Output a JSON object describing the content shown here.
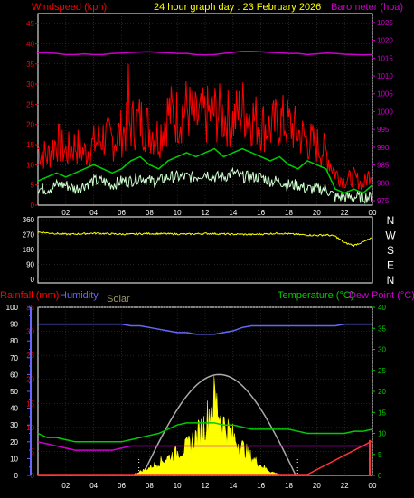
{
  "header": {
    "title": "24 hour graph day : 23 February 2026",
    "left_label": "Windspeed (kph)",
    "right_label": "Barometer (hpa)"
  },
  "colors": {
    "background": "#000000",
    "frame": "#ffffff",
    "grid": "#444444",
    "title": "#ffff00",
    "wind_avg": "#00cc00",
    "wind_gust": "#ff0000",
    "wind_band": "#d0ffd0",
    "barometer": "#cc00cc",
    "direction": "#ffff00",
    "rain_axis": "#ff0000",
    "humidity": "#6666ff",
    "solar": "#ffff00",
    "solar_label": "#999966",
    "solar_max": "#aaaaaa",
    "temperature": "#00cc00",
    "dewpoint": "#cc00cc",
    "rainfall": "#ff3333"
  },
  "chart_data": [
    {
      "type": "line",
      "id": "wind-baro",
      "xlabel": "",
      "x_ticks": [
        "02",
        "04",
        "06",
        "08",
        "10",
        "12",
        "14",
        "16",
        "18",
        "20",
        "22",
        "00"
      ],
      "y_left_ticks": [
        "0",
        "5",
        "10",
        "15",
        "20",
        "25",
        "30",
        "35",
        "40",
        "45"
      ],
      "y_right_ticks": [
        "975",
        "980",
        "985",
        "990",
        "995",
        "1000",
        "1005",
        "1010",
        "1015",
        "1020",
        "1025"
      ],
      "ylim_left": [
        0,
        47.5
      ],
      "ylim_right": [
        973.75,
        1027.5
      ],
      "series": [
        {
          "name": "Windspeed (kph)",
          "axis": "left",
          "values": [
            6,
            7,
            8,
            7,
            8,
            9,
            10,
            9,
            8,
            9,
            11,
            12,
            10,
            9,
            11,
            12,
            13,
            12,
            13,
            14,
            12,
            13,
            14,
            13,
            12,
            11,
            12,
            10,
            9,
            11,
            10,
            9,
            4,
            3,
            4,
            3,
            5
          ]
        },
        {
          "name": "Barometer (hpa)",
          "axis": "right",
          "values": [
            1016.5,
            1016.5,
            1016.3,
            1016.0,
            1016.0,
            1016.2,
            1016.0,
            1016.0,
            1016.3,
            1016.4,
            1016.6,
            1016.7,
            1016.8,
            1016.6,
            1016.5,
            1016.3,
            1016.3,
            1016.0,
            1015.9,
            1016.0,
            1016.3,
            1016.6,
            1016.9,
            1016.9,
            1016.8,
            1016.6,
            1016.5,
            1016.3,
            1016.3,
            1016.0,
            1016.2,
            1016.4,
            1016.3,
            1016.1,
            1016.0,
            1015.9,
            1016.0
          ]
        }
      ],
      "gust_values": [
        14,
        12,
        16,
        13,
        15,
        13,
        15,
        17,
        16,
        18,
        20,
        21,
        19,
        17,
        23,
        22,
        24,
        21,
        22,
        23,
        22,
        21,
        24,
        22,
        20,
        19,
        21,
        20,
        18,
        16,
        15,
        13,
        8,
        6,
        7,
        5,
        9
      ],
      "gust_peak": 35,
      "min_band_values": [
        4,
        4,
        5,
        5,
        4,
        5,
        6,
        6,
        5,
        6,
        6,
        7,
        6,
        6,
        7,
        7,
        7,
        7,
        8,
        7,
        7,
        8,
        7,
        7,
        7,
        6,
        6,
        5,
        5,
        4,
        4,
        4,
        2,
        2,
        2,
        2,
        2
      ]
    },
    {
      "type": "scatter",
      "id": "direction",
      "y_ticks": [
        "360",
        "270",
        "180",
        "90",
        "0"
      ],
      "ylim": [
        0,
        360
      ],
      "compass": [
        "N",
        "W",
        "S",
        "E",
        "N"
      ],
      "values": [
        285,
        280,
        276,
        272,
        273,
        275,
        278,
        276,
        274,
        272,
        272,
        274,
        276,
        275,
        274,
        273,
        272,
        274,
        276,
        275,
        273,
        272,
        271,
        270,
        272,
        275,
        278,
        274,
        270,
        267,
        265,
        268,
        260,
        220,
        205,
        225,
        250
      ]
    },
    {
      "type": "area",
      "id": "rain-hum-solar-temp",
      "labels": {
        "rainfall": "Rainfall (mm)",
        "humidity": "Humidity",
        "solar": "Solar",
        "temperature": "Temperature (°C)",
        "dewpoint": "Dew Point (°C)"
      },
      "x_ticks": [
        "02",
        "04",
        "06",
        "08",
        "10",
        "12",
        "14",
        "16",
        "18",
        "20",
        "22",
        "00"
      ],
      "y_humidity_ticks": [
        "0",
        "10",
        "20",
        "30",
        "40",
        "50",
        "60",
        "70",
        "80",
        "90",
        "100"
      ],
      "y_rain_ticks": [
        "0",
        "5",
        "10",
        "15",
        "20",
        "25",
        "30",
        "35"
      ],
      "y_temp_ticks": [
        "0",
        "5",
        "10",
        "15",
        "20",
        "25",
        "30",
        "35",
        "40"
      ],
      "ylim_humidity": [
        0,
        100
      ],
      "ylim_rain": [
        0,
        35
      ],
      "ylim_temp": [
        0,
        40
      ],
      "humidity": [
        90,
        90,
        90,
        90,
        90,
        90,
        90,
        90,
        90,
        90,
        89,
        89,
        88,
        87,
        86,
        85,
        85,
        84,
        84,
        84,
        85,
        86,
        88,
        89,
        89,
        89,
        89,
        89,
        89,
        89,
        89,
        89,
        89,
        90,
        90,
        90,
        90
      ],
      "temperature": [
        10,
        9,
        9,
        8.5,
        8,
        8,
        8,
        8,
        8,
        8,
        8.5,
        9,
        9.5,
        10,
        11,
        12,
        12.5,
        12.5,
        12.5,
        12.5,
        12,
        12,
        11.5,
        11,
        11,
        11,
        11,
        11,
        10.5,
        10,
        10,
        10,
        10,
        10,
        10.5,
        10.5,
        11
      ],
      "dewpoint": [
        8,
        7.5,
        7,
        6.5,
        6,
        6,
        6,
        6,
        6,
        6.5,
        7,
        7,
        7,
        7,
        7,
        7,
        7,
        7,
        7,
        7,
        7,
        7,
        7,
        7,
        7,
        7,
        7,
        7,
        7,
        7,
        7,
        7,
        7,
        7,
        7,
        7,
        7
      ],
      "rainfall": [
        0,
        0,
        0,
        0,
        0,
        0,
        0,
        0,
        0,
        0,
        0,
        0,
        0,
        0,
        0,
        0,
        0,
        0,
        0,
        0,
        0,
        0,
        0,
        0,
        0,
        0,
        0,
        0,
        0,
        0,
        1,
        2,
        3,
        4,
        5,
        6,
        7
      ],
      "solar_pct": [
        0,
        0,
        0,
        0,
        0,
        0,
        0,
        0,
        0,
        0,
        0,
        3,
        6,
        10,
        14,
        18,
        22,
        30,
        40,
        60,
        40,
        30,
        22,
        14,
        8,
        3,
        1,
        0,
        0,
        0,
        0,
        0,
        0,
        0,
        0,
        0,
        0
      ],
      "solar_max_peak_pct": 60,
      "solar_max_start_hour": 7.5,
      "solar_max_end_hour": 18.5
    }
  ]
}
